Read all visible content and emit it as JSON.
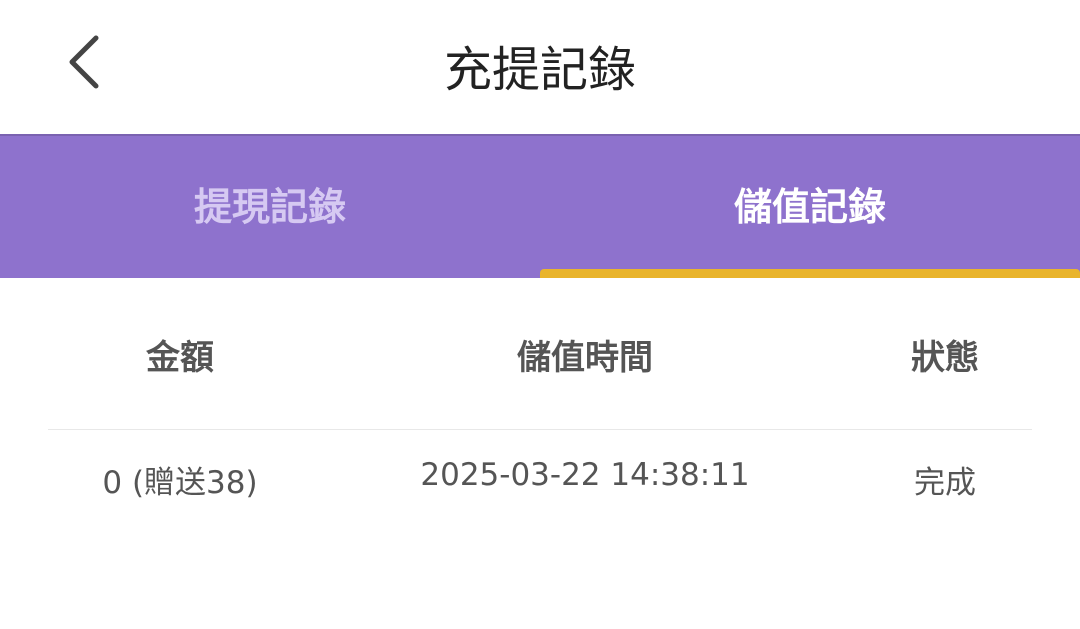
{
  "header": {
    "title": "充提記錄",
    "back_icon": "chevron-left-icon"
  },
  "tabs": [
    {
      "label": "提現記錄",
      "active": false
    },
    {
      "label": "儲值記錄",
      "active": true
    }
  ],
  "colors": {
    "tab_bar": "#8e72cd",
    "indicator": "#e9b42c"
  },
  "table": {
    "columns": [
      "金額",
      "儲值時間",
      "狀態"
    ],
    "rows": [
      {
        "amount": "0 (贈送38)",
        "time": "2025-03-22 14:38:11",
        "status": "完成"
      }
    ]
  }
}
